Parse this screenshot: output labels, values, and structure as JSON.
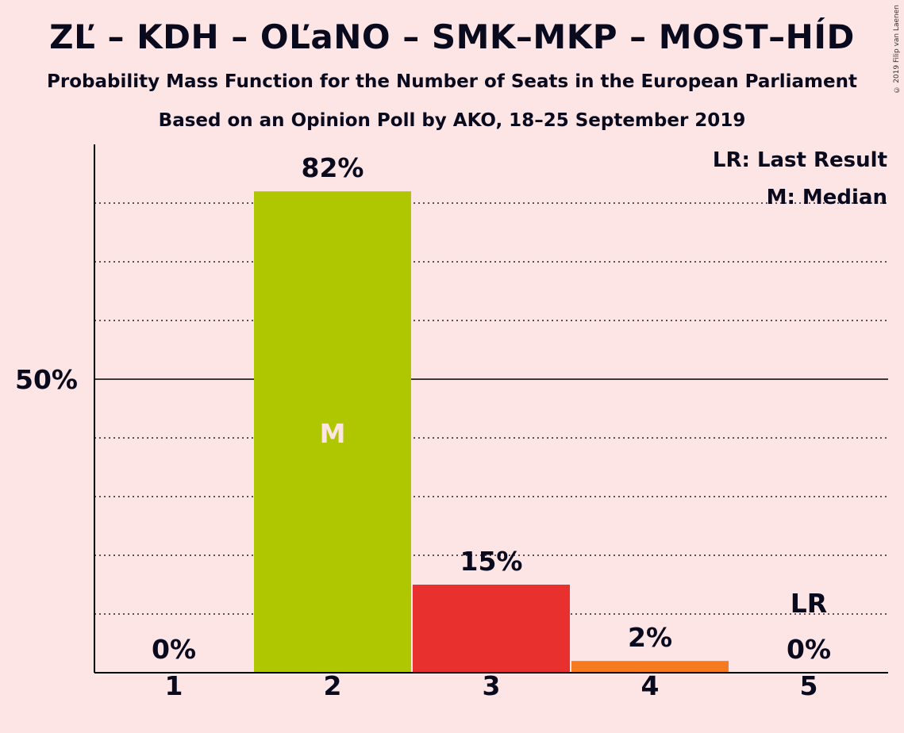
{
  "title": "ZĽ – KDH – OĽaNO – SMK–MKP – MOST–HÍD",
  "subtitle": "Probability Mass Function for the Number of Seats in the European Parliament",
  "subtitle2": "Based on an Opinion Poll by AKO, 18–25 September 2019",
  "copyright": "© 2019 Filip van Laenen",
  "legend": {
    "last_result": "LR: Last Result",
    "median": "M: Median"
  },
  "colors": {
    "background": "#fde5e5",
    "bar_2": "#aec700",
    "bar_3": "#e8302f",
    "bar_4": "#f57a20"
  },
  "chart_data": {
    "type": "bar",
    "title": "ZĽ – KDH – OĽaNO – SMK–MKP – MOST–HÍD",
    "categories": [
      "1",
      "2",
      "3",
      "4",
      "5"
    ],
    "values": [
      0,
      82,
      15,
      2,
      0
    ],
    "value_labels": [
      "0%",
      "82%",
      "15%",
      "2%",
      "0%"
    ],
    "ylim": [
      0,
      90
    ],
    "y_tick_label": "50%",
    "y_tick_value": 50,
    "gridlines": [
      10,
      20,
      30,
      40,
      60,
      70,
      80
    ],
    "median_category": "2",
    "median_label": "M",
    "last_result_category": "5",
    "last_result_label": "LR",
    "legend_position": "top-right"
  }
}
